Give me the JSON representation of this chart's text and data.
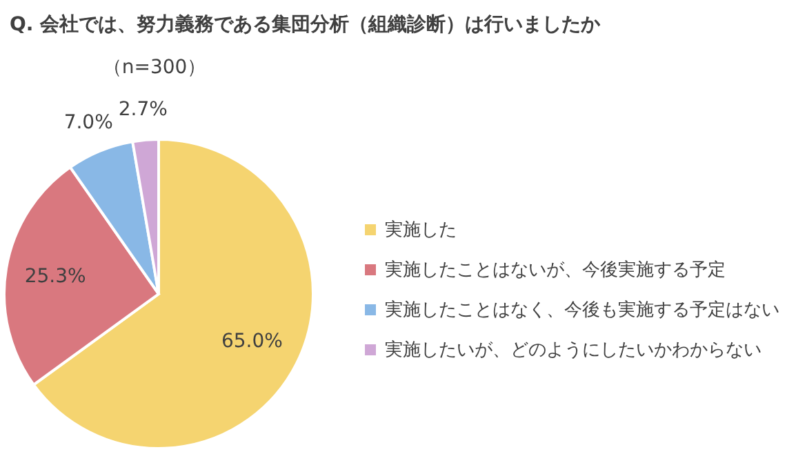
{
  "chart_data": {
    "type": "pie",
    "title": "Q. 会社では、努力義務である集団分析（組織診断）は行いましたか",
    "annotations": [
      "（n=300）"
    ],
    "categories": [
      "実施した",
      "実施したことはないが、今後実施する予定",
      "実施したことはなく、今後も実施する予定はない",
      "実施したいが、どのようにしたいかわからない"
    ],
    "values": [
      65.0,
      25.3,
      7.0,
      2.7
    ],
    "colors": [
      "#f5d470",
      "#d9787f",
      "#89b8e6",
      "#cfa7d6"
    ],
    "value_labels": [
      "65.0%",
      "25.3%",
      "7.0%",
      "2.7%"
    ],
    "legend": "right"
  }
}
